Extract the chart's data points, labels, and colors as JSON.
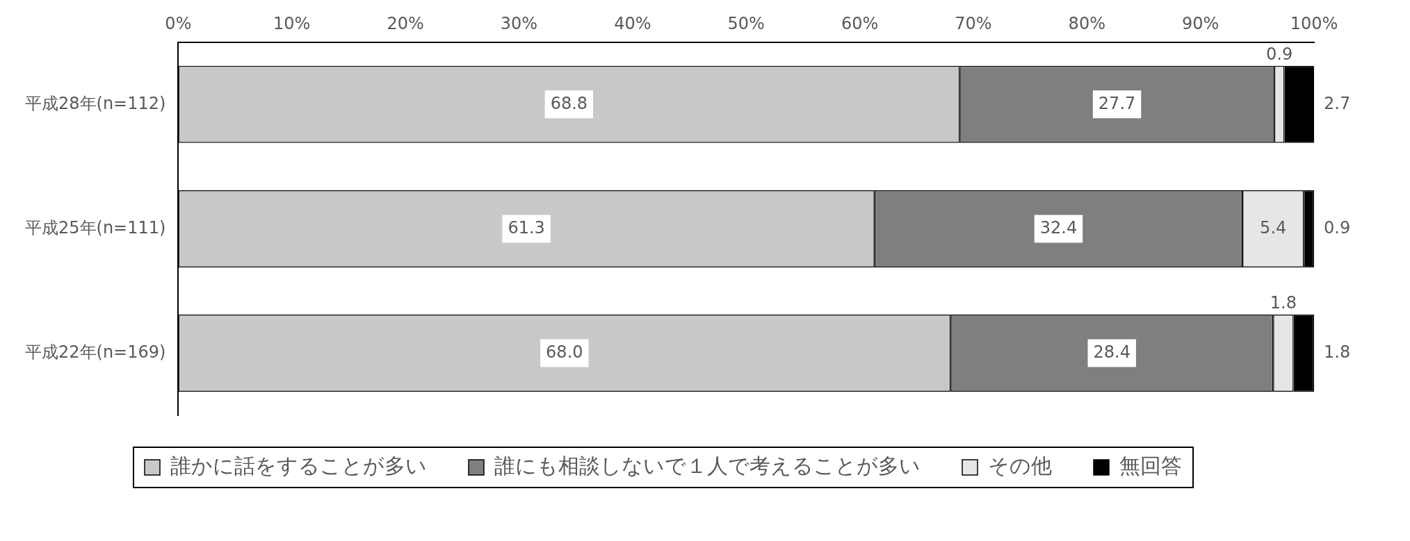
{
  "chart_data": {
    "type": "bar",
    "orientation": "horizontal",
    "stacked": true,
    "categories": [
      "平成28年(n=112)",
      "平成25年(n=111)",
      "平成22年(n=169)"
    ],
    "series": [
      {
        "name": "誰かに話をすることが多い",
        "color": "#c8c8c8",
        "values": [
          68.8,
          61.3,
          68.0
        ],
        "value_labels": [
          "68.8",
          "61.3",
          "68.0"
        ]
      },
      {
        "name": "誰にも相談しないで１人で考えることが多い",
        "color": "#7f7f7f",
        "values": [
          27.7,
          32.4,
          28.4
        ],
        "value_labels": [
          "27.7",
          "32.4",
          "28.4"
        ]
      },
      {
        "name": "その他",
        "color": "#e6e6e6",
        "values": [
          0.9,
          5.4,
          1.8
        ],
        "value_labels": [
          "0.9",
          "5.4",
          "1.8"
        ]
      },
      {
        "name": "無回答",
        "color": "#000000",
        "values": [
          2.7,
          0.9,
          1.8
        ],
        "value_labels": [
          "2.7",
          "0.9",
          "1.8"
        ]
      }
    ],
    "xlim": [
      0,
      100
    ],
    "xticks": [
      {
        "value": 0,
        "label": "0%"
      },
      {
        "value": 10,
        "label": "10%"
      },
      {
        "value": 20,
        "label": "20%"
      },
      {
        "value": 30,
        "label": "30%"
      },
      {
        "value": 40,
        "label": "40%"
      },
      {
        "value": 50,
        "label": "50%"
      },
      {
        "value": 60,
        "label": "60%"
      },
      {
        "value": 70,
        "label": "70%"
      },
      {
        "value": 80,
        "label": "80%"
      },
      {
        "value": 90,
        "label": "90%"
      },
      {
        "value": 100,
        "label": "100%"
      }
    ],
    "grid": false,
    "legend": "bottom"
  }
}
